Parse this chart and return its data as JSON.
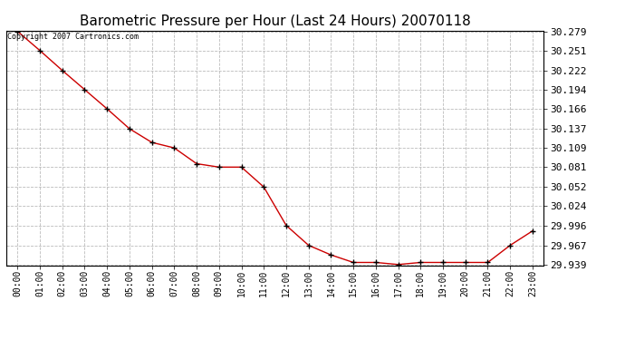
{
  "title": "Barometric Pressure per Hour (Last 24 Hours) 20070118",
  "copyright_text": "Copyright 2007 Cartronics.com",
  "x_labels": [
    "00:00",
    "01:00",
    "02:00",
    "03:00",
    "04:00",
    "05:00",
    "06:00",
    "07:00",
    "08:00",
    "09:00",
    "10:00",
    "11:00",
    "12:00",
    "13:00",
    "14:00",
    "15:00",
    "16:00",
    "17:00",
    "18:00",
    "19:00",
    "20:00",
    "21:00",
    "22:00",
    "23:00"
  ],
  "y_values": [
    30.279,
    30.251,
    30.222,
    30.194,
    30.166,
    30.137,
    30.117,
    30.109,
    30.086,
    30.081,
    30.081,
    30.052,
    29.996,
    29.967,
    29.953,
    29.942,
    29.942,
    29.939,
    29.942,
    29.942,
    29.942,
    29.942,
    29.967,
    29.988
  ],
  "y_ticks": [
    29.939,
    29.967,
    29.996,
    30.024,
    30.052,
    30.081,
    30.109,
    30.137,
    30.166,
    30.194,
    30.222,
    30.251,
    30.279
  ],
  "y_min": 29.939,
  "y_max": 30.279,
  "line_color": "#cc0000",
  "marker": "+",
  "background_color": "#ffffff",
  "plot_bg_color": "#ffffff",
  "grid_color": "#bbbbbb",
  "title_fontsize": 11,
  "copyright_fontsize": 6,
  "tick_fontsize": 8,
  "axis_label_fontsize": 7
}
